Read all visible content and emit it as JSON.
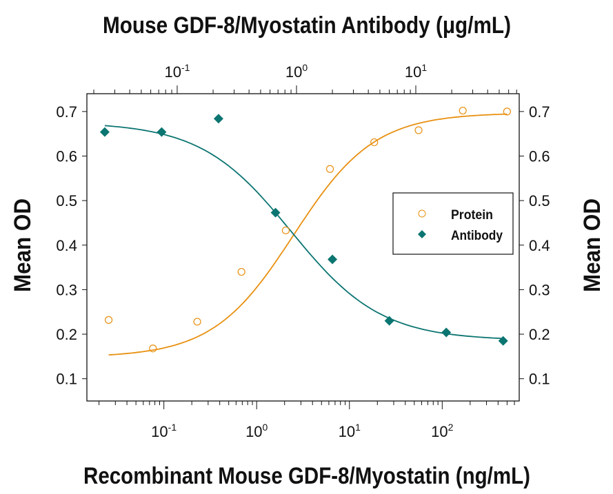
{
  "chart_data": {
    "type": "scatter",
    "top_title": "Mouse GDF-8/Myostatin Antibody (μg/mL)",
    "xlabel": "Recombinant Mouse GDF-8/Myostatin (ng/mL)",
    "ylabel_left": "Mean OD",
    "ylabel_right": "Mean OD",
    "x_scale": "log",
    "xlim_bottom": [
      0.0148,
      676
    ],
    "xlim_top": [
      0.0175,
      73.6
    ],
    "ylim": [
      0.05,
      0.74
    ],
    "y_ticks": [
      "0.1",
      "0.2",
      "0.3",
      "0.4",
      "0.5",
      "0.6",
      "0.7"
    ],
    "x_ticks_bottom": [
      {
        "exp": "-1",
        "value": 0.1
      },
      {
        "exp": "0",
        "value": 1
      },
      {
        "exp": "1",
        "value": 10
      },
      {
        "exp": "2",
        "value": 100
      }
    ],
    "x_ticks_top": [
      {
        "exp": "-1",
        "value": 0.1
      },
      {
        "exp": "0",
        "value": 1
      },
      {
        "exp": "1",
        "value": 10
      }
    ],
    "tick_base": "10",
    "grid": false,
    "legend_position": "right-middle",
    "series": [
      {
        "name": "Protein",
        "axis": "bottom",
        "marker": "open-circle",
        "color": "#E8900F",
        "x": [
          0.0254,
          0.0762,
          0.229,
          0.686,
          2.06,
          6.17,
          18.5,
          55.6,
          166.7,
          500
        ],
        "y": [
          0.232,
          0.168,
          0.228,
          0.34,
          0.433,
          0.571,
          0.631,
          0.658,
          0.702,
          0.7
        ],
        "fit": {
          "bottom": 0.148,
          "top": 0.697,
          "ec50": 2.5,
          "hill": 1.0
        }
      },
      {
        "name": "Antibody",
        "axis": "top",
        "marker": "filled-diamond",
        "color": "#0B7571",
        "x": [
          0.0247,
          0.0741,
          0.222,
          0.667,
          2.0,
          6.0,
          18.0,
          54.0
        ],
        "y": [
          0.654,
          0.654,
          0.684,
          0.473,
          0.368,
          0.23,
          0.204,
          0.185
        ],
        "fit": {
          "bottom": 0.186,
          "top": 0.676,
          "ec50": 0.9,
          "hill": 1.15
        }
      }
    ]
  }
}
